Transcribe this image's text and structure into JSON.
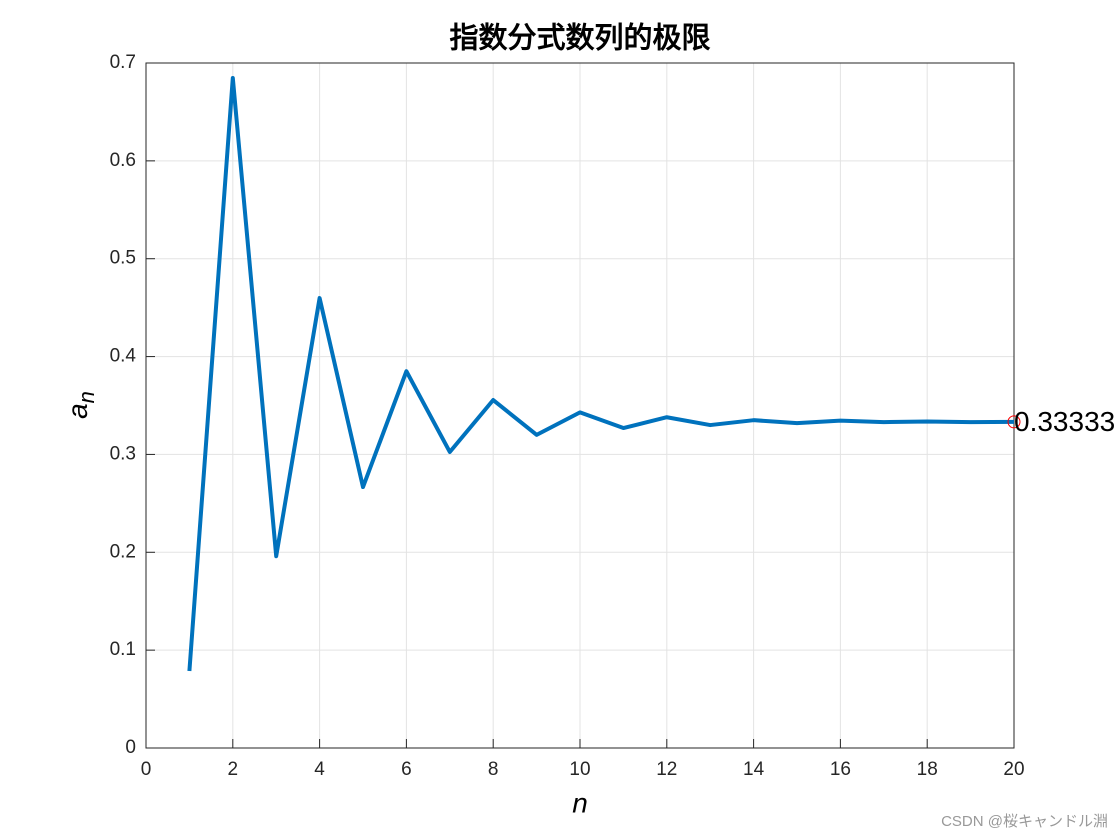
{
  "chart_data": {
    "type": "line",
    "title": "指数分式数列的极限",
    "x_label": "n",
    "y_label": {
      "base": "a",
      "subscript": "n"
    },
    "x": [
      1,
      2,
      3,
      4,
      5,
      6,
      7,
      8,
      9,
      10,
      11,
      12,
      13,
      14,
      15,
      16,
      17,
      18,
      19,
      20
    ],
    "series": [
      {
        "color": "#0072bd",
        "values": [
          0.0787,
          0.6847,
          0.196,
          0.4598,
          0.2667,
          0.385,
          0.3025,
          0.3556,
          0.32,
          0.343,
          0.327,
          0.338,
          0.33,
          0.335,
          0.332,
          0.3345,
          0.333,
          0.3337,
          0.333,
          0.3333
        ]
      }
    ],
    "xlim": [
      0,
      20
    ],
    "ylim": [
      0,
      0.7
    ],
    "xticks": [
      0,
      2,
      4,
      6,
      8,
      10,
      12,
      14,
      16,
      18,
      20
    ],
    "yticks": [
      0,
      0.1,
      0.2,
      0.3,
      0.4,
      0.5,
      0.6,
      0.7
    ],
    "grid": true,
    "annotation": {
      "text": "0.33333",
      "x": 20,
      "y": 0.3333,
      "color": "#ff0000"
    }
  },
  "watermark": "CSDN @桜キャンドル淵"
}
